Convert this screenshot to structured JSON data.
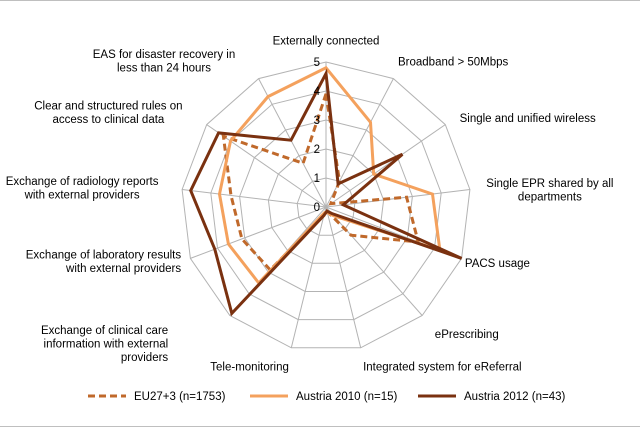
{
  "chart_data": {
    "type": "radar",
    "title": "",
    "axes": [
      "Externally connected",
      "Broadband > 50Mbps",
      "Single and unified wireless",
      "Single EPR shared by all departments",
      "PACS usage",
      "ePrescribing",
      "Integrated system for eReferral",
      "Tele-monitoring",
      "Exchange of clinical care information with external providers",
      "Exchange of laboratory results with external providers",
      "Exchange of radiology reports with external providers",
      "Clear and structured rules on access to clinical data",
      "EAS for disaster recovery in less than 24 hours"
    ],
    "axis_label_lines": [
      [
        "Externally connected"
      ],
      [
        "Broadband > 50Mbps"
      ],
      [
        "Single and unified wireless"
      ],
      [
        "Single EPR shared by all",
        "departments"
      ],
      [
        "PACS usage"
      ],
      [
        "ePrescribing"
      ],
      [
        "Integrated system for eReferral"
      ],
      [
        "Tele-monitoring"
      ],
      [
        "Exchange of clinical care",
        "information with external",
        "providers"
      ],
      [
        "Exchange of laboratory results",
        "with external providers"
      ],
      [
        "Exchange of radiology reports",
        "with external providers"
      ],
      [
        "Clear and structured rules on",
        "access to clinical data"
      ],
      [
        "EAS for disaster recovery in",
        "less than 24 hours"
      ]
    ],
    "rlim": [
      0,
      5
    ],
    "ticks": [
      0,
      1,
      2,
      3,
      4,
      5
    ],
    "series": [
      {
        "name": "EU27+3 (n=1753)",
        "color": "#c0692b",
        "dash": "dashed",
        "values": [
          3.9,
          1.0,
          0.2,
          2.8,
          3.4,
          1.3,
          0.15,
          0.3,
          2.9,
          3.1,
          3.3,
          4.3,
          1.7
        ]
      },
      {
        "name": "Austria 2010 (n=15)",
        "color": "#f4a15d",
        "dash": "solid",
        "values": [
          4.8,
          3.3,
          2.0,
          3.7,
          4.2,
          0.4,
          0.2,
          0.2,
          3.5,
          3.6,
          3.7,
          4.0,
          4.3
        ]
      },
      {
        "name": "Austria 2012 (n=43)",
        "color": "#7a3110",
        "dash": "solid",
        "values": [
          4.6,
          0.9,
          3.2,
          0.6,
          5.0,
          0.3,
          0.15,
          0.3,
          4.9,
          4.1,
          4.7,
          4.5,
          2.6
        ]
      }
    ],
    "legend_position": "bottom"
  }
}
